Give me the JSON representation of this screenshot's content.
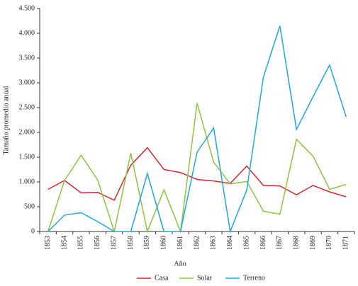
{
  "chart_data": {
    "type": "line",
    "y_label": "Tamaño promedio anual",
    "x_label": "Año",
    "categories": [
      "1853",
      "1854",
      "1855",
      "1856",
      "1857",
      "1858",
      "1859",
      "1860",
      "1861",
      "1862",
      "1863",
      "1864",
      "1865",
      "1866",
      "1867",
      "1868",
      "1869",
      "1870",
      "1871"
    ],
    "series": [
      {
        "name": "Casa",
        "color": "#d7262f",
        "values": [
          850,
          1030,
          780,
          790,
          630,
          1340,
          1690,
          1250,
          1190,
          1050,
          1020,
          970,
          1320,
          930,
          920,
          740,
          930,
          800,
          700
        ]
      },
      {
        "name": "Solar",
        "color": "#8cc63f",
        "values": [
          0,
          1030,
          1540,
          1040,
          0,
          1580,
          0,
          840,
          0,
          2590,
          1400,
          960,
          1010,
          410,
          350,
          1860,
          1520,
          850,
          950
        ]
      },
      {
        "name": "Terreno",
        "color": "#1ea7e1",
        "values": [
          0,
          330,
          380,
          200,
          0,
          0,
          1170,
          0,
          0,
          1600,
          2090,
          0,
          840,
          3110,
          4150,
          2060,
          2720,
          3360,
          2310
        ]
      }
    ],
    "ylim": [
      0,
      4500
    ],
    "yticks": [
      0,
      500,
      {
        "value": 1000,
        "label": "1.000"
      },
      {
        "value": 1500,
        "label": "1.500"
      },
      {
        "value": 2000,
        "label": "2.000"
      },
      {
        "value": 2500,
        "label": "2.500"
      },
      {
        "value": 3000,
        "label": "3.000"
      },
      {
        "value": 3500,
        "label": "3.500"
      },
      {
        "value": 4000,
        "label": "4.000"
      },
      {
        "value": 4500,
        "label": "4.500"
      }
    ],
    "legend": "bottom",
    "grid": false
  }
}
